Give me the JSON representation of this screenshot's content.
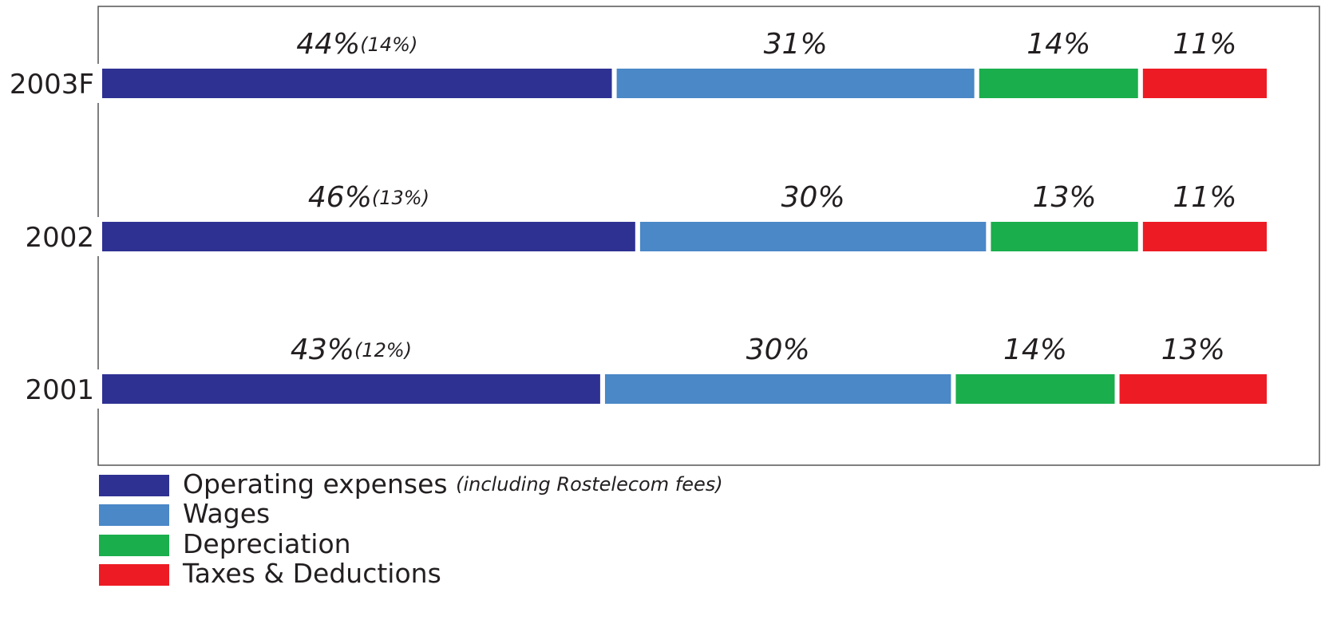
{
  "chart_data": {
    "type": "stacked_bar_horizontal",
    "categories": [
      "2003F",
      "2002",
      "2001"
    ],
    "xlim": [
      0,
      100
    ],
    "series": [
      {
        "name": "Operating expenses",
        "note": "(including Rostelecom fees)",
        "color": "#2e3192",
        "values": [
          44,
          46,
          43
        ],
        "value_labels": [
          "44%",
          "46%",
          "43%"
        ],
        "sub_values": [
          14,
          13,
          12
        ],
        "sub_value_labels": [
          "(14%)",
          "(13%)",
          "(12%)"
        ]
      },
      {
        "name": "Wages",
        "color": "#4a88c7",
        "values": [
          31,
          30,
          30
        ],
        "value_labels": [
          "31%",
          "30%",
          "30%"
        ]
      },
      {
        "name": "Depreciation",
        "color": "#1aae4c",
        "values": [
          14,
          13,
          14
        ],
        "value_labels": [
          "14%",
          "13%",
          "14%"
        ]
      },
      {
        "name": "Taxes & Deductions",
        "color": "#ed1c24",
        "values": [
          11,
          11,
          13
        ],
        "value_labels": [
          "11%",
          "11%",
          "13%"
        ]
      }
    ]
  }
}
